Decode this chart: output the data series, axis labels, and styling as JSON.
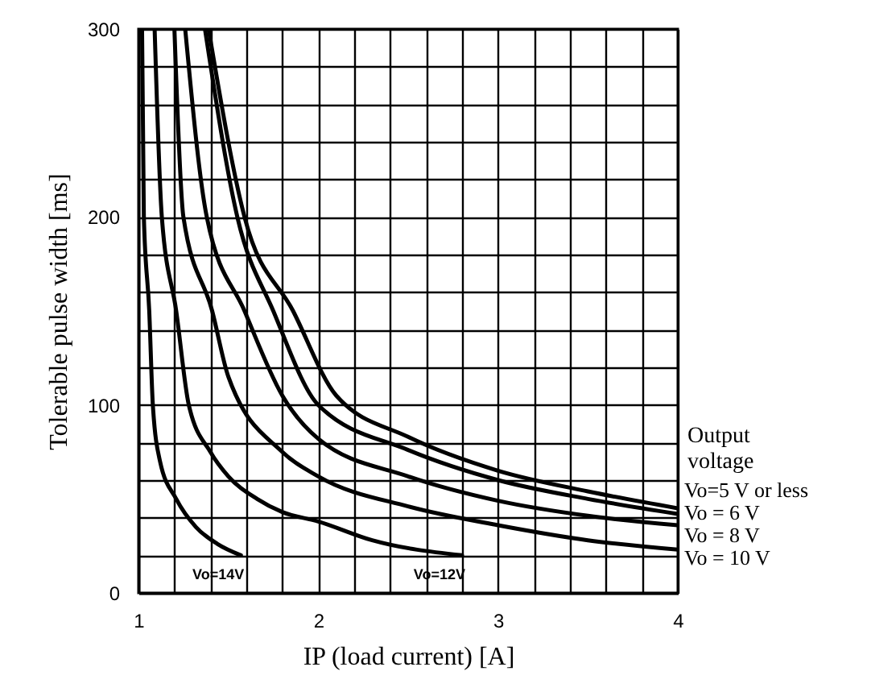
{
  "chart_data": {
    "type": "line",
    "xlabel": "IP (load current) [A]",
    "ylabel": "Tolerable pulse width [ms]",
    "legend_title": "Output voltage",
    "xlim": [
      1,
      4
    ],
    "ylim": [
      0,
      300
    ],
    "xticks": [
      1,
      {
        "value": 1.2,
        "label": null
      },
      {
        "value": 1.4,
        "label": null
      },
      {
        "value": 1.6,
        "label": null
      },
      {
        "value": 1.8,
        "label": null
      },
      2,
      {
        "value": 2.2,
        "label": null
      },
      {
        "value": 2.4,
        "label": null
      },
      {
        "value": 2.6,
        "label": null
      },
      {
        "value": 2.8,
        "label": null
      },
      3,
      {
        "value": 3.2,
        "label": null
      },
      {
        "value": 3.4,
        "label": null
      },
      {
        "value": 3.6,
        "label": null
      },
      {
        "value": 3.8,
        "label": null
      },
      4
    ],
    "yticks": [
      0,
      {
        "value": 20,
        "label": null
      },
      {
        "value": 40,
        "label": null
      },
      {
        "value": 60,
        "label": null
      },
      {
        "value": 80,
        "label": null
      },
      100,
      {
        "value": 120,
        "label": null
      },
      {
        "value": 140,
        "label": null
      },
      {
        "value": 160,
        "label": null
      },
      {
        "value": 180,
        "label": null
      },
      200,
      {
        "value": 220,
        "label": null
      },
      {
        "value": 240,
        "label": null
      },
      {
        "value": 260,
        "label": null
      },
      {
        "value": 280,
        "label": null
      },
      300
    ],
    "grid": true,
    "series": [
      {
        "name": "Vo=5 V or less",
        "color": "#000000",
        "x": [
          1.39,
          1.59,
          1.86,
          2.1,
          2.5,
          3,
          3.5,
          4
        ],
        "values": [
          300,
          200,
          150,
          105,
          83,
          65,
          54,
          45
        ]
      },
      {
        "name": "Vo = 6 V",
        "color": "#000000",
        "x": [
          1.37,
          1.55,
          1.75,
          2,
          2.5,
          3,
          3.5,
          4
        ],
        "values": [
          300,
          200,
          150,
          100,
          76,
          60,
          50,
          42
        ]
      },
      {
        "name": "Vo = 8 V",
        "color": "#000000",
        "x": [
          1.26,
          1.38,
          1.59,
          1.8,
          2,
          2.5,
          3,
          3.5,
          4
        ],
        "values": [
          300,
          200,
          150,
          105,
          82,
          62,
          49,
          41,
          36
        ]
      },
      {
        "name": "Vo = 10 V",
        "color": "#000000",
        "x": [
          1.2,
          1.25,
          1.41,
          1.5,
          1.8,
          2,
          2.5,
          3,
          3.5,
          4
        ],
        "values": [
          300,
          200,
          150,
          115,
          75,
          62,
          46,
          36,
          28,
          23
        ]
      },
      {
        "name": "Vo=12V",
        "color": "#000000",
        "x": [
          1.09,
          1.13,
          1.21,
          1.28,
          1.4,
          1.5,
          1.66,
          1.8,
          2,
          2.3,
          2.8
        ],
        "values": [
          300,
          200,
          150,
          100,
          75,
          62,
          50,
          43,
          38,
          28,
          20
        ]
      },
      {
        "name": "Vo=14V",
        "color": "#000000",
        "x": [
          1.02,
          1.03,
          1.06,
          1.08,
          1.12,
          1.21,
          1.32,
          1.44,
          1.57
        ],
        "values": [
          300,
          200,
          150,
          100,
          70,
          50,
          35,
          26,
          20
        ]
      }
    ]
  }
}
